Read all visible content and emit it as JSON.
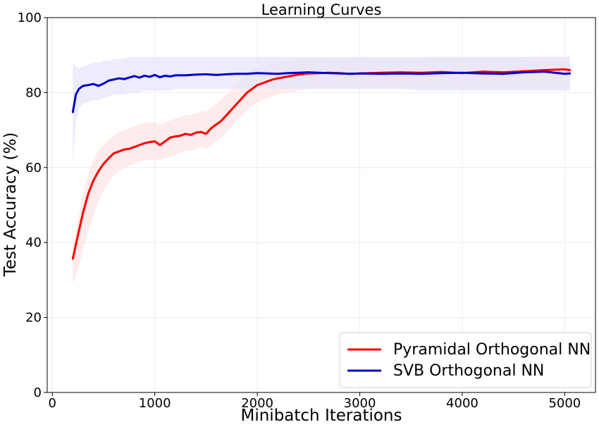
{
  "chart_data": {
    "type": "line",
    "title": "Learning Curves",
    "xlabel": "Minibatch Iterations",
    "ylabel": "Test Accuracy (%)",
    "xlim": [
      -50,
      5300
    ],
    "ylim": [
      0,
      100
    ],
    "xticks": [
      0,
      1000,
      2000,
      3000,
      4000,
      5000
    ],
    "xtick_labels": [
      "0",
      "1000",
      "2000",
      "3000",
      "4000",
      "5000"
    ],
    "yticks": [
      0,
      20,
      40,
      60,
      80,
      100
    ],
    "ytick_labels": [
      "0",
      "20",
      "40",
      "60",
      "80",
      "100"
    ],
    "grid": true,
    "legend_position": "lower-right",
    "series": [
      {
        "name": "Pyramidal Orthogonal NN",
        "color": "#ff0000",
        "band_color": "#fde4e4",
        "x": [
          200,
          250,
          300,
          350,
          400,
          450,
          500,
          550,
          600,
          650,
          700,
          750,
          800,
          850,
          900,
          950,
          1000,
          1050,
          1100,
          1150,
          1200,
          1250,
          1300,
          1350,
          1400,
          1450,
          1500,
          1550,
          1600,
          1650,
          1700,
          1750,
          1800,
          1850,
          1900,
          1950,
          2000,
          2050,
          2100,
          2150,
          2200,
          2300,
          2400,
          2500,
          2600,
          2700,
          2800,
          2900,
          3000,
          3200,
          3400,
          3600,
          3800,
          4000,
          4200,
          4400,
          4600,
          4800,
          5000,
          5050
        ],
        "y": [
          35.7,
          42,
          48,
          53,
          56.5,
          59,
          61,
          62.5,
          63.8,
          64.3,
          64.8,
          65,
          65.5,
          66,
          66.5,
          66.8,
          67,
          66,
          67,
          68,
          68.3,
          68.5,
          69,
          68.7,
          69.3,
          69.5,
          69,
          70.5,
          71.5,
          72.5,
          74,
          75.5,
          77,
          78.5,
          80,
          81,
          82,
          82.5,
          83,
          83.5,
          83.8,
          84.3,
          84.8,
          85.1,
          85.2,
          85.3,
          85.2,
          85.0,
          85.1,
          85.3,
          85.4,
          85.3,
          85.5,
          85.2,
          85.6,
          85.4,
          85.7,
          86.0,
          86.2,
          86.0
        ],
        "band_low": [
          29,
          33,
          38,
          43,
          47,
          51,
          54,
          56,
          58,
          59,
          60,
          60.5,
          61,
          61.5,
          62,
          62,
          62,
          62,
          62.5,
          63,
          63.5,
          64,
          64.5,
          64.5,
          65,
          65.5,
          65,
          66,
          67,
          68,
          69.5,
          71,
          72.5,
          74,
          75.5,
          76.5,
          77.5,
          78,
          78.5,
          79,
          79.5,
          80,
          80.5,
          81,
          81,
          81,
          81,
          81,
          81,
          81,
          81,
          81,
          81,
          81,
          81,
          81,
          81,
          81,
          81.5,
          81.5
        ],
        "band_high": [
          39,
          46,
          53,
          58,
          62,
          64.5,
          66,
          67.5,
          68.5,
          69.5,
          70,
          70.5,
          71,
          71.5,
          72,
          72,
          72,
          71.5,
          72,
          72.5,
          73,
          73.5,
          74,
          74,
          74.5,
          75,
          75,
          76,
          77,
          78,
          79.5,
          81,
          82.5,
          84,
          85.5,
          86.5,
          87,
          87.5,
          88,
          88,
          88,
          88.5,
          89,
          89,
          89,
          89.2,
          89.2,
          89.2,
          89.2,
          89.2,
          89.2,
          89.2,
          89.3,
          89.3,
          89.4,
          89.4,
          89.5,
          89.6,
          89.6,
          89.6
        ]
      },
      {
        "name": "SVB Orthogonal NN",
        "color": "#0000cc",
        "band_color": "#e6e6fb",
        "x": [
          200,
          230,
          260,
          300,
          350,
          400,
          450,
          500,
          550,
          600,
          650,
          700,
          750,
          800,
          850,
          900,
          950,
          1000,
          1050,
          1100,
          1150,
          1200,
          1300,
          1400,
          1500,
          1600,
          1700,
          1800,
          1900,
          2000,
          2100,
          2200,
          2300,
          2400,
          2500,
          2600,
          2700,
          2800,
          2900,
          3000,
          3200,
          3400,
          3600,
          3800,
          4000,
          4200,
          4400,
          4600,
          4800,
          5000,
          5050
        ],
        "y": [
          74.8,
          79.5,
          81,
          81.8,
          82,
          82.3,
          81.8,
          82.4,
          83.2,
          83.5,
          83.8,
          83.6,
          84,
          84.4,
          84,
          84.5,
          84.2,
          84.7,
          84.1,
          84.5,
          84.3,
          84.6,
          84.6,
          84.8,
          84.9,
          84.7,
          84.9,
          85,
          85,
          85.2,
          85.1,
          85,
          85.2,
          85.3,
          85.4,
          85.3,
          85.2,
          85.1,
          85.0,
          85.1,
          85.0,
          85.1,
          85.0,
          85.2,
          85.3,
          85.1,
          85.0,
          85.4,
          85.6,
          85.0,
          85.1
        ],
        "band_low": [
          62,
          72,
          76,
          77,
          77.5,
          78,
          78,
          78.5,
          79,
          79.5,
          79.5,
          79.5,
          80,
          80,
          80,
          80.5,
          80.5,
          80.5,
          80.5,
          80.5,
          80.5,
          81,
          81,
          81,
          81,
          81,
          81,
          81,
          81,
          81,
          81,
          81,
          81,
          81,
          81,
          81,
          81,
          81,
          81,
          81,
          81,
          81,
          80.5,
          80.5,
          80.5,
          80.5,
          80.5,
          80.5,
          80.5,
          80.5,
          80.5
        ],
        "band_high": [
          88,
          87,
          86.5,
          87,
          87.5,
          88,
          88,
          88.5,
          88.5,
          89,
          89,
          89,
          89.5,
          89.5,
          89.5,
          89.5,
          89.5,
          89.5,
          89.5,
          89.5,
          89.5,
          89.5,
          89.5,
          89.5,
          89.5,
          89.5,
          89.5,
          89.5,
          89.5,
          89.5,
          89.5,
          89.5,
          89.5,
          89.5,
          89.5,
          89.5,
          89.5,
          89.5,
          89.5,
          89.5,
          89.5,
          89.5,
          89.5,
          89.5,
          89.5,
          89.5,
          89.5,
          89.5,
          89.5,
          89.5,
          89.5
        ]
      }
    ]
  }
}
